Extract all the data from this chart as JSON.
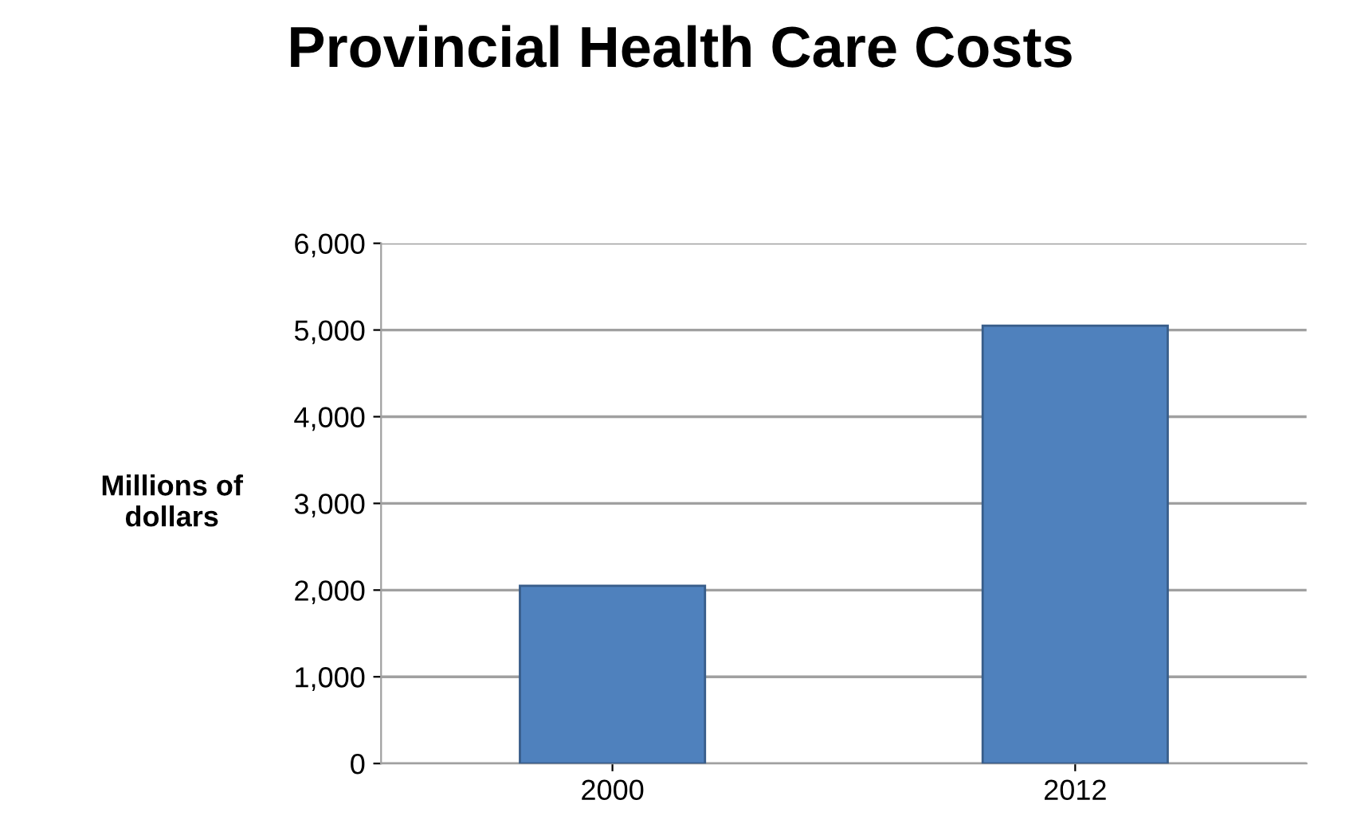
{
  "chart_data": {
    "type": "bar",
    "title": "Provincial Health Care Costs",
    "ylabel": "Millions of\ndollars",
    "categories": [
      "2000",
      "2012"
    ],
    "values": [
      2050,
      5050
    ],
    "color": "#4f81bd",
    "ylim": [
      0,
      6000
    ],
    "yticks": [
      {
        "value": 0,
        "label": "0"
      },
      {
        "value": 1000,
        "label": "1,000"
      },
      {
        "value": 2000,
        "label": "2,000"
      },
      {
        "value": 3000,
        "label": "3,000"
      },
      {
        "value": 4000,
        "label": "4,000"
      },
      {
        "value": 5000,
        "label": "5,000"
      },
      {
        "value": 6000,
        "label": "6,000"
      }
    ],
    "grid": "y"
  }
}
